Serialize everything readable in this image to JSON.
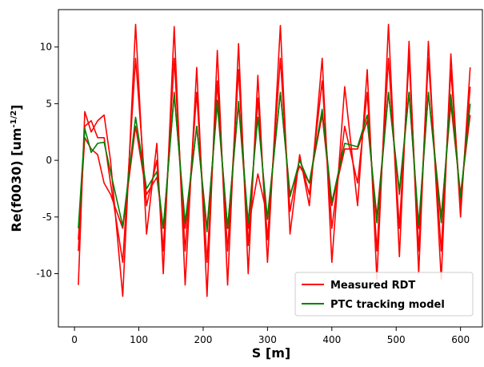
{
  "chart_data": {
    "type": "line",
    "xlabel": "S [m]",
    "ylabel": "Re(f0030)  [um",
    "ylabel_sup": "-1/2",
    "ylabel_end": "]",
    "x": [
      6,
      16,
      26,
      36,
      46,
      56,
      75,
      95,
      112,
      128,
      138,
      155,
      172,
      190,
      206,
      222,
      238,
      255,
      270,
      285,
      300,
      320,
      335,
      350,
      365,
      385,
      400,
      420,
      440,
      455,
      470,
      488,
      505,
      520,
      535,
      550,
      570,
      585,
      600,
      615
    ],
    "series": [
      {
        "name": "Measured RDT",
        "color": "#ff0000",
        "values": [
          [
            -11,
            4.3,
            2.5,
            3.5,
            4,
            0,
            -12,
            12,
            -6.5,
            1.5,
            -10,
            11.8,
            -11,
            8.2,
            -12,
            9.7,
            -11,
            10.3,
            -10,
            7.5,
            -9,
            11.9,
            -6.5,
            0.5,
            -4,
            9,
            -9,
            6.5,
            -4,
            8,
            -10.5,
            12,
            -8.5,
            10.5,
            -10,
            10.5,
            -10.5,
            9.4,
            -5,
            8.2
          ],
          [
            -8,
            3,
            3.5,
            2,
            2,
            -2,
            -9,
            9,
            -4,
            0,
            -8,
            9,
            -8,
            6,
            -9,
            7,
            -8,
            8,
            -7.5,
            5.5,
            -7,
            9,
            -4.5,
            0.2,
            -3,
            7,
            -6,
            3,
            -2,
            6,
            -8,
            9,
            -6,
            9,
            -8,
            9,
            -8,
            8,
            -4,
            6.5
          ],
          [
            -7,
            2,
            1,
            0.5,
            -2,
            -3,
            -6,
            3,
            -3,
            -1.5,
            -6,
            6,
            -6,
            3,
            -6,
            5,
            -6,
            5,
            -6,
            -1.2,
            -5,
            6,
            -3,
            -0.5,
            -2,
            4,
            -4,
            1,
            1,
            3.5,
            -5,
            6,
            -3,
            6,
            -6,
            6,
            -5,
            5,
            -3,
            4
          ]
        ]
      },
      {
        "name": "PTC tracking model",
        "color": "#008000",
        "values": [
          -6,
          2.8,
          0.7,
          1.5,
          1.6,
          -1,
          -5.8,
          3.8,
          -2.5,
          -1,
          -6,
          5.8,
          -5.5,
          3,
          -6.3,
          5.3,
          -6,
          5.2,
          -5.5,
          3.8,
          -5.2,
          6,
          -3.2,
          0,
          -2,
          4.5,
          -3.7,
          1.5,
          1.2,
          4,
          -5.5,
          6,
          -2.7,
          6,
          -5.7,
          6,
          -5.5,
          5.8,
          -3.3,
          5
        ]
      }
    ],
    "xlim": [
      -25,
      634
    ],
    "ylim": [
      -14.7,
      13.3
    ],
    "xticks": [
      0,
      100,
      200,
      300,
      400,
      500,
      600
    ],
    "yticks": [
      -10,
      -5,
      0,
      5,
      10
    ],
    "legend": "lower right"
  }
}
